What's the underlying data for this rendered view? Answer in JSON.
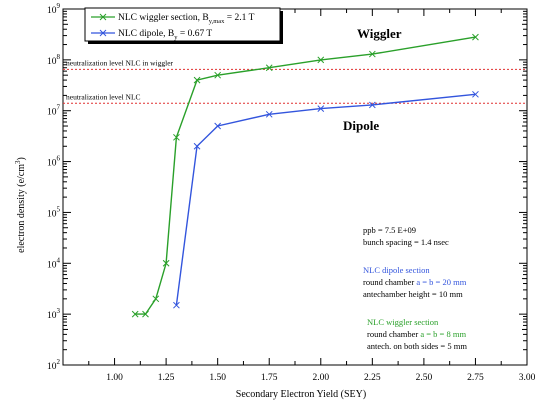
{
  "chart_data": {
    "type": "line",
    "xlabel": "Secondary Electron Yield (SEY)",
    "ylabel_main": "electron density (e/cm",
    "ylabel_sup": "3",
    "ylabel_tail": ")",
    "xlim": [
      0.75,
      3.0
    ],
    "ylim_exp": [
      2,
      9
    ],
    "y_log_scale": true,
    "grid": false,
    "x_ticks": [
      "1.00",
      "1.25",
      "1.50",
      "1.75",
      "2.00",
      "2.25",
      "2.50",
      "2.75",
      "3.00"
    ],
    "x_tick_values": [
      1.0,
      1.25,
      1.5,
      1.75,
      2.0,
      2.25,
      2.5,
      2.75,
      3.0
    ],
    "y_tick_base": "10",
    "y_tick_exps": [
      "2",
      "3",
      "4",
      "5",
      "6",
      "7",
      "8",
      "9"
    ],
    "series": [
      {
        "name_main": "NLC wiggler section, B",
        "name_sub": "y,max",
        "name_tail": " = 2.1 T",
        "color": "#2aa02a",
        "x": [
          1.1,
          1.15,
          1.2,
          1.25,
          1.3,
          1.4,
          1.5,
          1.75,
          2.0,
          2.25,
          2.75
        ],
        "y": [
          1000,
          1000,
          2000,
          10000,
          3000000,
          40000000,
          50000000,
          70000000,
          100000000,
          130000000,
          280000000
        ]
      },
      {
        "name_main": "NLC dipole, B",
        "name_sub": "y",
        "name_tail": " = 0.67 T",
        "color": "#3355dd",
        "x": [
          1.3,
          1.4,
          1.5,
          1.75,
          2.0,
          2.25,
          2.75
        ],
        "y": [
          1500,
          2000000,
          5000000,
          8500000,
          11000000,
          13000000,
          21000000
        ]
      }
    ],
    "reference_lines": [
      {
        "label": "neutralization level NLC in wiggler",
        "y": 65000000,
        "color": "#e03030"
      },
      {
        "label": "neutralization level NLC",
        "y": 14000000,
        "color": "#e03030"
      }
    ],
    "annotations": {
      "wiggler": "Wiggler",
      "dipole": "Dipole",
      "params": [
        "ppb = 7.5 E+09",
        "bunch spacing = 1.4 nsec"
      ],
      "dipole_section_title": "NLC dipole section",
      "dipole_chamber_prefix": "round chamber ",
      "dipole_chamber_value": "a = b = 20 mm",
      "dipole_antechamber": "antechamber height = 10 mm",
      "wiggler_section_title": "NLC wiggler section",
      "wiggler_chamber_prefix": "round chamber ",
      "wiggler_chamber_value": "a = b = 8 mm",
      "wiggler_antechamber": "antech. on both sides = 5 mm"
    }
  }
}
